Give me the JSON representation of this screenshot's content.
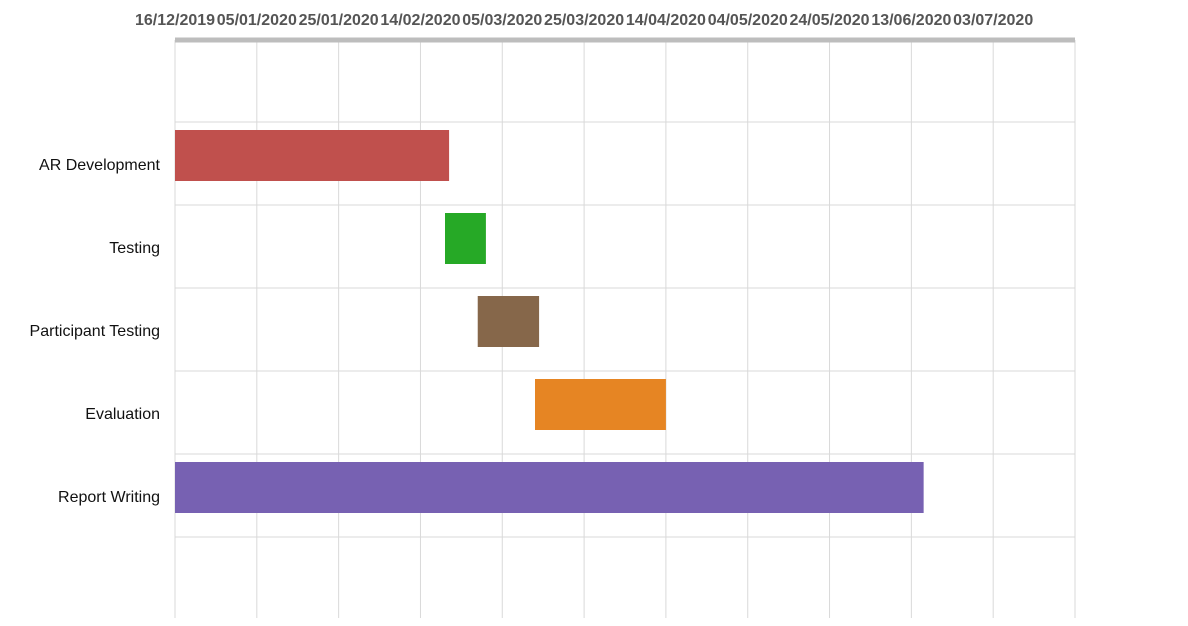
{
  "chart_data": {
    "type": "gantt",
    "title": "",
    "xlabel": "",
    "ylabel": "",
    "x_tick_labels": [
      "16/12/2019",
      "05/01/2020",
      "25/01/2020",
      "14/02/2020",
      "05/03/2020",
      "25/03/2020",
      "14/04/2020",
      "04/05/2020",
      "24/05/2020",
      "13/06/2020",
      "03/07/2020"
    ],
    "x_range": [
      "2019-12-16",
      "2020-07-23"
    ],
    "axis_position": "top",
    "grid": true,
    "tasks": [
      {
        "name": "AR Development",
        "start": "2019-12-16",
        "end": "2020-02-21",
        "color": "#c0504d"
      },
      {
        "name": "Testing",
        "start": "2020-02-20",
        "end": "2020-03-01",
        "color": "#26a926"
      },
      {
        "name": "Participant Testing",
        "start": "2020-02-28",
        "end": "2020-03-14",
        "color": "#86674a"
      },
      {
        "name": "Evaluation",
        "start": "2020-03-13",
        "end": "2020-04-14",
        "color": "#e68523"
      },
      {
        "name": "Report Writing",
        "start": "2019-12-16",
        "end": "2020-06-16",
        "color": "#7761b2"
      }
    ]
  }
}
